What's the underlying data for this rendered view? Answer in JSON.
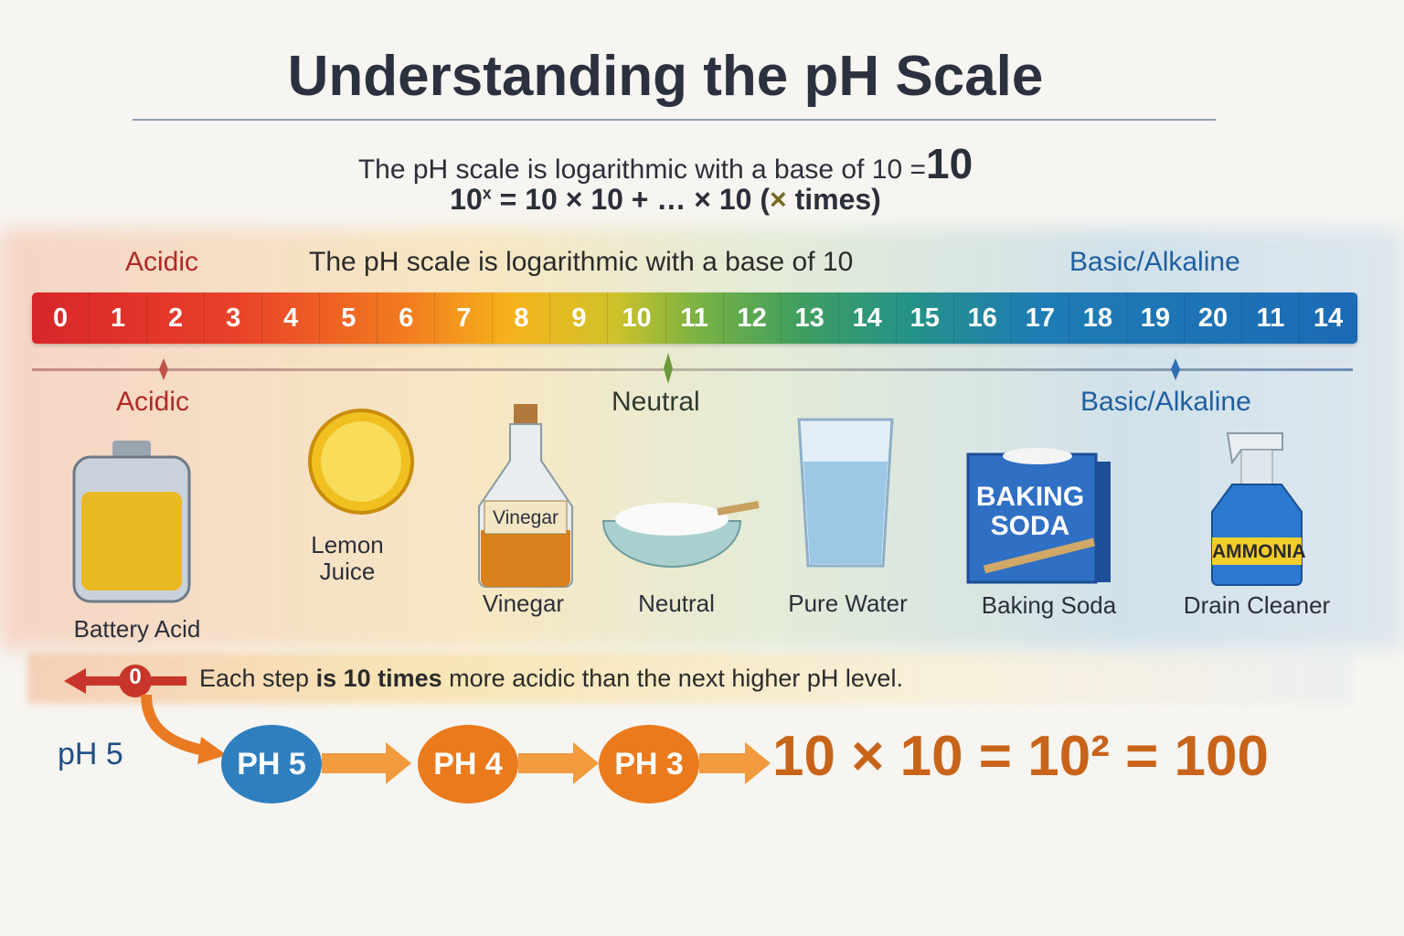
{
  "title": "Understanding the pH Scale",
  "subtitle": {
    "line1": "The pH scale is logarithmic with a base of 10 =",
    "line1_big": "10",
    "line2_base": "10",
    "line2_exp": "x",
    "line2_rest": " = 10 × 10 + … × 10 (",
    "line2_x": "×",
    "line2_end": " times)"
  },
  "scale": {
    "left_label": "Acidic",
    "center_label": "The pH scale is logarithmic with a base of 10",
    "right_label": "Basic/Alkaline",
    "numbers": [
      "0",
      "1",
      "2",
      "3",
      "4",
      "5",
      "6",
      "7",
      "8",
      "9",
      "10",
      "11",
      "12",
      "13",
      "14",
      "15",
      "16",
      "17",
      "18",
      "19",
      "20",
      "11",
      "14"
    ],
    "markers": {
      "acidic": "Acidic",
      "neutral": "Neutral",
      "basic": "Basic/Alkaline"
    },
    "colors": {
      "acidic": "#c0282a",
      "neutral": "#6a9a3a",
      "basic": "#1f6fb5"
    }
  },
  "items": [
    {
      "label": "Battery Acid",
      "icon": "battery-icon"
    },
    {
      "label": "Lemon Juice",
      "icon": "lemon-icon"
    },
    {
      "label": "Vinegar",
      "icon": "vinegar-bottle-icon",
      "tag": "Vinegar"
    },
    {
      "label": "Neutral",
      "icon": "salt-bowl-icon"
    },
    {
      "label": "Pure Water",
      "icon": "water-glass-icon"
    },
    {
      "label": "Baking Soda",
      "icon": "baking-soda-box-icon",
      "tag_line1": "BAKING",
      "tag_line2": "SODA"
    },
    {
      "label": "Drain Cleaner",
      "icon": "spray-bottle-icon",
      "tag": "AMMONIA"
    }
  ],
  "step": {
    "marker": "0",
    "text_pre": "Each step ",
    "text_bold": "is 10 times",
    "text_post": " more acidic than the next higher pH level."
  },
  "chain": {
    "side_label": "pH 5",
    "nodes": [
      "PH 5",
      "PH 4",
      "PH 3"
    ],
    "equation": "10 × 10 = 10² = 100"
  }
}
